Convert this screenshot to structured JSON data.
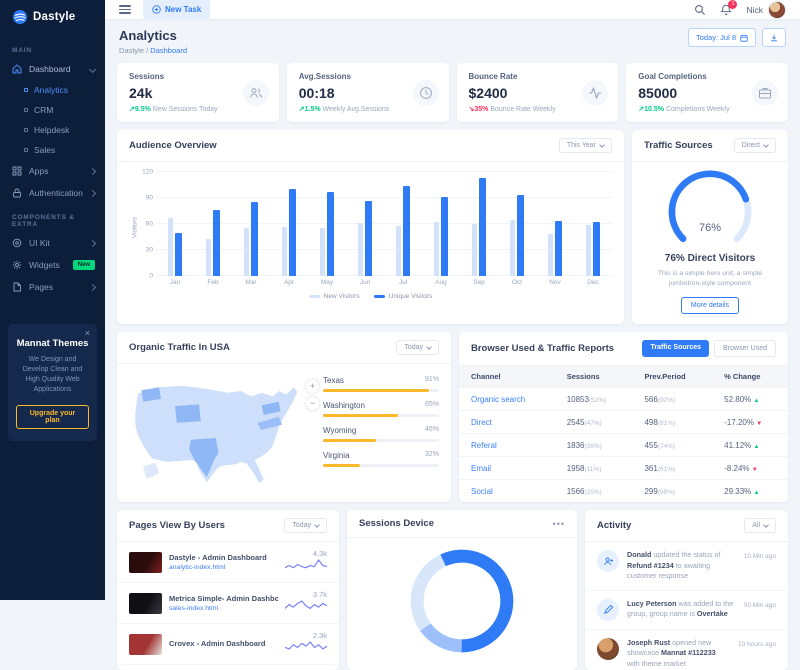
{
  "brand": {
    "name": "Dastyle"
  },
  "topbar": {
    "new_task_label": "New Task",
    "user_name": "Nick",
    "notification_count": "1"
  },
  "page_header": {
    "title": "Analytics",
    "breadcrumb_parent": "Dastyle",
    "breadcrumb_sep": "/",
    "breadcrumb_current": "Dashboard",
    "date_label": "Today: Jul 8"
  },
  "sidebar": {
    "section_main": "Main",
    "dashboard": "Dashboard",
    "dashboard_children": [
      "Analytics",
      "CRM",
      "Helpdesk",
      "Sales"
    ],
    "active_child": "Analytics",
    "apps": "Apps",
    "authentication": "Authentication",
    "section_components": "Components & Extra",
    "ui_kit": "UI Kit",
    "widgets": "Widgets",
    "widgets_badge": "New",
    "pages": "Pages",
    "promo": {
      "title": "Mannat Themes",
      "body": "We Design and Develop Clean and High Quality Web Applications",
      "cta": "Upgrade your plan"
    }
  },
  "stats": [
    {
      "label": "Sessions",
      "value": "24k",
      "delta": "9.5%",
      "desc": "New Sessions Today",
      "dir": "up",
      "icon": "users-icon"
    },
    {
      "label": "Avg.Sessions",
      "value": "00:18",
      "delta": "1.5%",
      "desc": "Weekly Avg.Sessions",
      "dir": "up",
      "icon": "clock-icon"
    },
    {
      "label": "Bounce Rate",
      "value": "$2400",
      "delta": "35%",
      "desc": "Bounce Rate Weekly",
      "dir": "down",
      "icon": "activity-icon"
    },
    {
      "label": "Goal Completions",
      "value": "85000",
      "delta": "10.5%",
      "desc": "Completions Weekly",
      "dir": "up",
      "icon": "briefcase-icon"
    }
  ],
  "audience": {
    "title": "Audience Overview",
    "filter": "This Year"
  },
  "traffic_sources": {
    "title": "Traffic Sources",
    "filter": "Direct",
    "percent_label": "76%",
    "headline": "76% Direct Visitors",
    "subtext": "This is a simple hero unit, a simple jumbotron-style component",
    "cta": "More details"
  },
  "organic": {
    "title": "Organic Traffic In USA",
    "filter": "Today",
    "states": [
      {
        "name": "Texas",
        "pct": "91%",
        "value": 91
      },
      {
        "name": "Washington",
        "pct": "65%",
        "value": 65
      },
      {
        "name": "Wyoming",
        "pct": "46%",
        "value": 46
      },
      {
        "name": "Virginia",
        "pct": "32%",
        "value": 32
      }
    ]
  },
  "reports": {
    "title": "Browser Used & Traffic Reports",
    "tabs": [
      "Traffic Sources",
      "Browser Used"
    ],
    "active_tab": "Traffic Sources",
    "columns": [
      "Channel",
      "Sessions",
      "Prev.Period",
      "% Change"
    ],
    "rows": [
      {
        "channel": "Organic search",
        "sessions": "10853",
        "sessions_share": "(52%)",
        "prev": "566",
        "prev_share": "(92%)",
        "change": "52.80%",
        "dir": "up"
      },
      {
        "channel": "Direct",
        "sessions": "2545",
        "sessions_share": "(47%)",
        "prev": "498",
        "prev_share": "(81%)",
        "change": "-17.20%",
        "dir": "down"
      },
      {
        "channel": "Referal",
        "sessions": "1836",
        "sessions_share": "(38%)",
        "prev": "455",
        "prev_share": "(74%)",
        "change": "41.12%",
        "dir": "up"
      },
      {
        "channel": "Email",
        "sessions": "1958",
        "sessions_share": "(11%)",
        "prev": "361",
        "prev_share": "(61%)",
        "change": "-8.24%",
        "dir": "down"
      },
      {
        "channel": "Social",
        "sessions": "1566",
        "sessions_share": "(25%)",
        "prev": "299",
        "prev_share": "(99%)",
        "change": "29.33%",
        "dir": "up"
      }
    ]
  },
  "pages_view": {
    "title": "Pages View By Users",
    "filter": "Today",
    "items": [
      {
        "title": "Dastyle - Admin Dashboard",
        "url": "analytic-index.html",
        "value": "4.3k",
        "spark": [
          3,
          5,
          3,
          6,
          4,
          3,
          5,
          4,
          10,
          5,
          4
        ],
        "thumb_colors": [
          "#2a0c0c",
          "#7e1f1f"
        ]
      },
      {
        "title": "Metrica Simple- Admin Dashboard",
        "url": "sales-index.html",
        "value": "3.7k",
        "spark": [
          3,
          6,
          4,
          7,
          9,
          5,
          3,
          6,
          4,
          7,
          5
        ],
        "thumb_colors": [
          "#101014",
          "#3a3a42"
        ]
      },
      {
        "title": "Crovex - Admin Dashboard",
        "url": "",
        "value": "2.3k",
        "spark": [
          4,
          3,
          6,
          4,
          7,
          5,
          8,
          4,
          6,
          3,
          5
        ],
        "thumb_colors": [
          "#a23434",
          "#e8e4dd"
        ]
      }
    ]
  },
  "sessions_device": {
    "title": "Sessions Device"
  },
  "activity": {
    "title": "Activity",
    "filter": "All",
    "items": [
      {
        "icon": "user-plus-icon",
        "actor": "Donald",
        "t1": " updated the status of ",
        "strong": "Refund #1234",
        "t2": " to awaiting customer response",
        "time": "10 Min ago"
      },
      {
        "icon": "pen-icon",
        "actor": "Lucy Peterson",
        "t1": " was added to the group, group name is ",
        "strong": "Overtake",
        "t2": "",
        "time": "50 Min ago"
      },
      {
        "icon": "avatar",
        "actor": "Joseph Rust",
        "t1": " opened new showcase ",
        "strong": "Mannat #112233",
        "t2": " with theme market",
        "time": "10 hours ago"
      }
    ]
  },
  "chart_data": [
    {
      "id": "audience",
      "type": "bar",
      "title": "Audience Overview",
      "categories": [
        "Jan",
        "Feb",
        "Mar",
        "Apr",
        "May",
        "Jun",
        "Jul",
        "Aug",
        "Sep",
        "Oct",
        "Nov",
        "Dec"
      ],
      "series": [
        {
          "name": "New Visitors",
          "color": "#d3e2fb",
          "values": [
            67,
            43,
            55,
            57,
            55,
            61,
            58,
            62,
            60,
            65,
            48,
            59
          ]
        },
        {
          "name": "Unique Visitors",
          "color": "#2f7bf5",
          "values": [
            50,
            76,
            85,
            100,
            97,
            87,
            104,
            91,
            113,
            93,
            64,
            62
          ]
        }
      ],
      "xlabel": "",
      "ylabel": "Visitors",
      "ylim": [
        0,
        120
      ],
      "yticks": [
        0,
        30,
        60,
        90,
        120
      ],
      "grid": true,
      "legend_position": "bottom"
    },
    {
      "id": "traffic-gauge",
      "type": "gauge",
      "value": 76,
      "max": 100,
      "sweep_deg": 270,
      "color": "#2f7bf5",
      "track_color": "#dce8fb",
      "label": "76%"
    },
    {
      "id": "sessions-donut",
      "type": "donut",
      "segments": [
        {
          "value": 57,
          "color": "#2f7bf5"
        },
        {
          "value": 15,
          "color": "#9dc0fa"
        },
        {
          "value": 28,
          "color": "#d8e6fc"
        }
      ],
      "start_deg": -115
    }
  ],
  "colors": {
    "primary": "#2f7bf5",
    "success": "#03c988",
    "danger": "#f5325c",
    "warning": "#fcb92c",
    "sidebar_bg": "#0d1e3a"
  }
}
